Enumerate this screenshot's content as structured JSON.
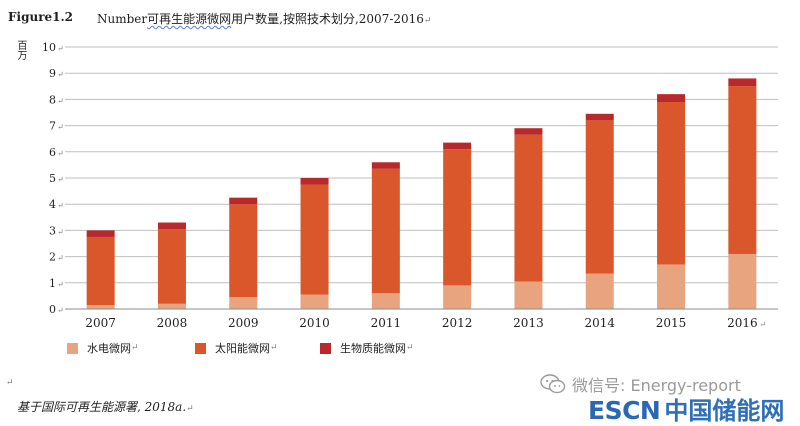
{
  "figure_label": "Figure1.2",
  "title": {
    "word": "Number",
    "squiggled": "可再生能源微网",
    "rest": "用户数量,按照技术划分,2007-2016"
  },
  "paragraph_mark": "↵",
  "y_unit": "百万",
  "source_note": "基于国际可再生能源署, 2018a.",
  "watermark": {
    "text": "微信号: Energy-report",
    "icon": "wechat-icon"
  },
  "logo": {
    "en": "ESCN",
    "cn": "中国储能网"
  },
  "colors": {
    "hydro": "#e8a47f",
    "solar": "#d9572a",
    "biomass": "#b9282a",
    "grid": "#bfbfbf",
    "axis": "#8c8c8c"
  },
  "chart_data": {
    "type": "bar",
    "stacked": true,
    "title": "Number可再生能源微网用户数量,按照技术划分,2007-2016",
    "ylabel": "百万",
    "xlabel": "",
    "categories": [
      "2007",
      "2008",
      "2009",
      "2010",
      "2011",
      "2012",
      "2013",
      "2014",
      "2015",
      "2016"
    ],
    "y_ticks": [
      "0",
      "1",
      "2",
      "3",
      "4",
      "5",
      "6",
      "7",
      "8",
      "9",
      "10"
    ],
    "ylim": [
      0,
      10
    ],
    "grid": true,
    "legend_position": "bottom",
    "series": [
      {
        "name": "水电微网",
        "color": "#e8a47f",
        "values": [
          0.15,
          0.2,
          0.45,
          0.55,
          0.6,
          0.9,
          1.05,
          1.35,
          1.7,
          2.1
        ]
      },
      {
        "name": "太阳能微网",
        "color": "#d9572a",
        "values": [
          2.6,
          2.85,
          3.55,
          4.2,
          4.75,
          5.2,
          5.6,
          5.85,
          6.2,
          6.4
        ]
      },
      {
        "name": "生物质能微网",
        "color": "#b9282a",
        "values": [
          0.25,
          0.25,
          0.25,
          0.25,
          0.25,
          0.25,
          0.25,
          0.25,
          0.3,
          0.3
        ]
      }
    ]
  }
}
